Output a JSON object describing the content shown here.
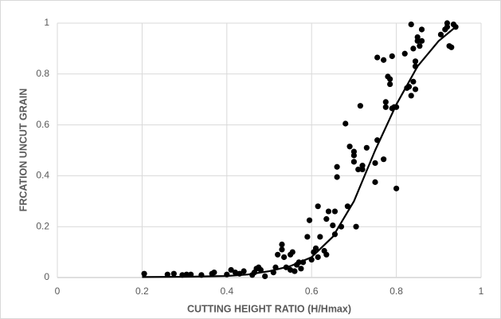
{
  "chart_data": {
    "type": "scatter",
    "x_label": "CUTTING HEIGHT RATIO (H/Hmax)",
    "y_label": "FRCATION UNCUT GRAIN",
    "xlim": [
      0,
      1
    ],
    "xticks": [
      0,
      0.2,
      0.4,
      0.6,
      0.8,
      1
    ],
    "ylim": [
      0,
      1
    ],
    "yticks": [
      0,
      0.2,
      0.4,
      0.6,
      0.8,
      1
    ],
    "grid": true,
    "series": [
      {
        "type": "scatter",
        "color": "#000000",
        "x": [
          0.205,
          0.26,
          0.275,
          0.295,
          0.305,
          0.315,
          0.34,
          0.365,
          0.37,
          0.4,
          0.41,
          0.42,
          0.43,
          0.44,
          0.46,
          0.465,
          0.47,
          0.475,
          0.48,
          0.49,
          0.51,
          0.515,
          0.52,
          0.53,
          0.53,
          0.535,
          0.54,
          0.55,
          0.55,
          0.555,
          0.56,
          0.565,
          0.57,
          0.575,
          0.58,
          0.59,
          0.595,
          0.6,
          0.605,
          0.61,
          0.615,
          0.615,
          0.62,
          0.63,
          0.635,
          0.635,
          0.64,
          0.65,
          0.655,
          0.655,
          0.66,
          0.66,
          0.67,
          0.68,
          0.685,
          0.69,
          0.7,
          0.7,
          0.7,
          0.705,
          0.71,
          0.715,
          0.72,
          0.72,
          0.73,
          0.75,
          0.75,
          0.755,
          0.755,
          0.77,
          0.77,
          0.775,
          0.775,
          0.78,
          0.785,
          0.785,
          0.79,
          0.79,
          0.795,
          0.8,
          0.8,
          0.82,
          0.825,
          0.83,
          0.835,
          0.835,
          0.84,
          0.84,
          0.845,
          0.845,
          0.845,
          0.85,
          0.85,
          0.855,
          0.86,
          0.86,
          0.905,
          0.915,
          0.92,
          0.92,
          0.925,
          0.93,
          0.935,
          0.94
        ],
        "values": [
          0.015,
          0.012,
          0.015,
          0.01,
          0.012,
          0.012,
          0.01,
          0.015,
          0.02,
          0.012,
          0.03,
          0.02,
          0.015,
          0.025,
          0.01,
          0.02,
          0.035,
          0.04,
          0.03,
          0.005,
          0.02,
          0.04,
          0.09,
          0.11,
          0.13,
          0.08,
          0.04,
          0.03,
          0.09,
          0.1,
          0.025,
          0.05,
          0.06,
          0.035,
          0.06,
          0.16,
          0.225,
          0.07,
          0.1,
          0.115,
          0.08,
          0.28,
          0.16,
          0.105,
          0.09,
          0.23,
          0.26,
          0.205,
          0.26,
          0.17,
          0.395,
          0.435,
          0.2,
          0.605,
          0.28,
          0.515,
          0.495,
          0.48,
          0.455,
          0.2,
          0.425,
          0.675,
          0.44,
          0.425,
          0.51,
          0.375,
          0.45,
          0.54,
          0.865,
          0.855,
          0.465,
          0.69,
          0.67,
          0.79,
          0.76,
          0.78,
          0.87,
          0.665,
          0.67,
          0.35,
          0.67,
          0.88,
          0.745,
          0.75,
          0.995,
          0.715,
          0.9,
          0.77,
          0.74,
          0.85,
          0.83,
          0.93,
          0.945,
          0.91,
          0.975,
          0.93,
          0.955,
          0.975,
          1.0,
          0.985,
          0.91,
          0.905,
          0.995,
          0.985
        ]
      },
      {
        "type": "line",
        "color": "#000000",
        "x": [
          0.2,
          0.3,
          0.4,
          0.45,
          0.5,
          0.55,
          0.6,
          0.65,
          0.7,
          0.75,
          0.8,
          0.85,
          0.9,
          0.94
        ],
        "values": [
          0.002,
          0.003,
          0.006,
          0.012,
          0.025,
          0.045,
          0.08,
          0.16,
          0.3,
          0.5,
          0.68,
          0.83,
          0.93,
          0.985
        ]
      }
    ]
  }
}
